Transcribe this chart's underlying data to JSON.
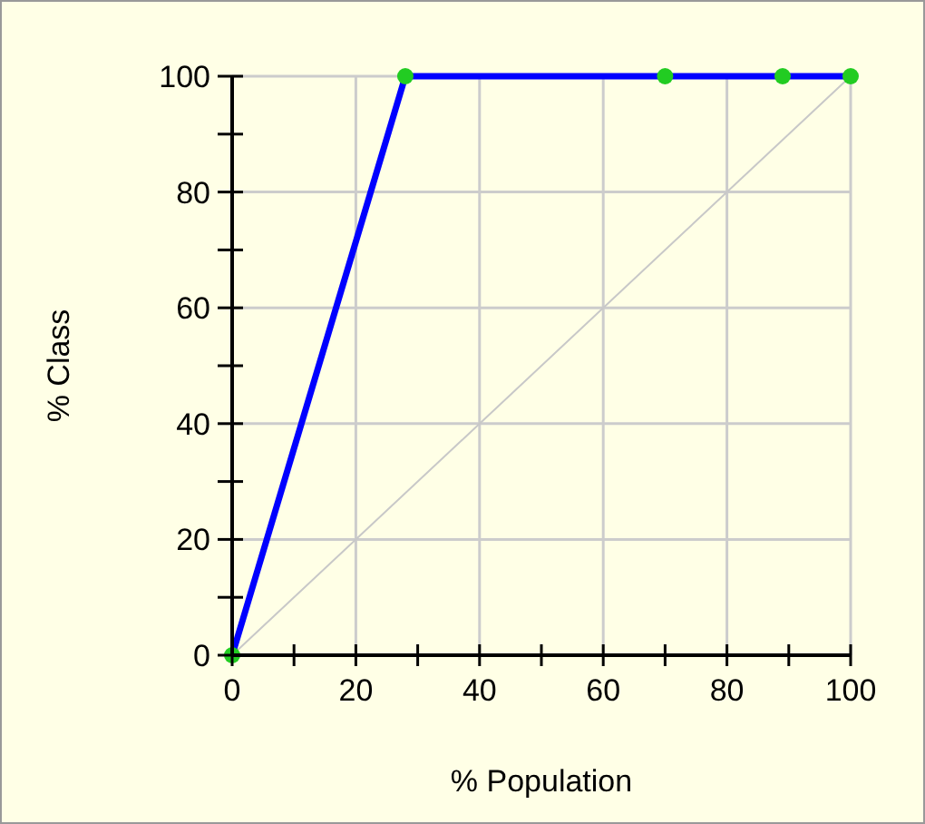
{
  "chart_data": {
    "type": "line",
    "xlabel": "% Population",
    "ylabel": "% Class",
    "xlim": [
      0,
      100
    ],
    "ylim": [
      0,
      100
    ],
    "xticks": [
      0,
      {
        "value": 10,
        "label": null
      },
      20,
      {
        "value": 30,
        "label": null
      },
      40,
      {
        "value": 50,
        "label": null
      },
      60,
      {
        "value": 70,
        "label": null
      },
      80,
      {
        "value": 90,
        "label": null
      },
      100
    ],
    "yticks": [
      0,
      {
        "value": 10,
        "label": null
      },
      20,
      {
        "value": 30,
        "label": null
      },
      40,
      {
        "value": 50,
        "label": null
      },
      60,
      {
        "value": 70,
        "label": null
      },
      80,
      {
        "value": 90,
        "label": null
      },
      100
    ],
    "grid": true,
    "series": [
      {
        "color": "#c8c8c8",
        "x": [
          0,
          100
        ],
        "values": [
          0,
          100
        ]
      },
      {
        "color": "#0000ff",
        "x": [
          0,
          28,
          70,
          89,
          100
        ],
        "values": [
          0,
          100,
          100,
          100,
          100
        ]
      },
      {
        "type": "scatter",
        "color": "#22cc22",
        "marker": "circle",
        "x": [
          0,
          28,
          70,
          89,
          100
        ],
        "values": [
          0,
          100,
          100,
          100,
          100
        ]
      }
    ]
  }
}
